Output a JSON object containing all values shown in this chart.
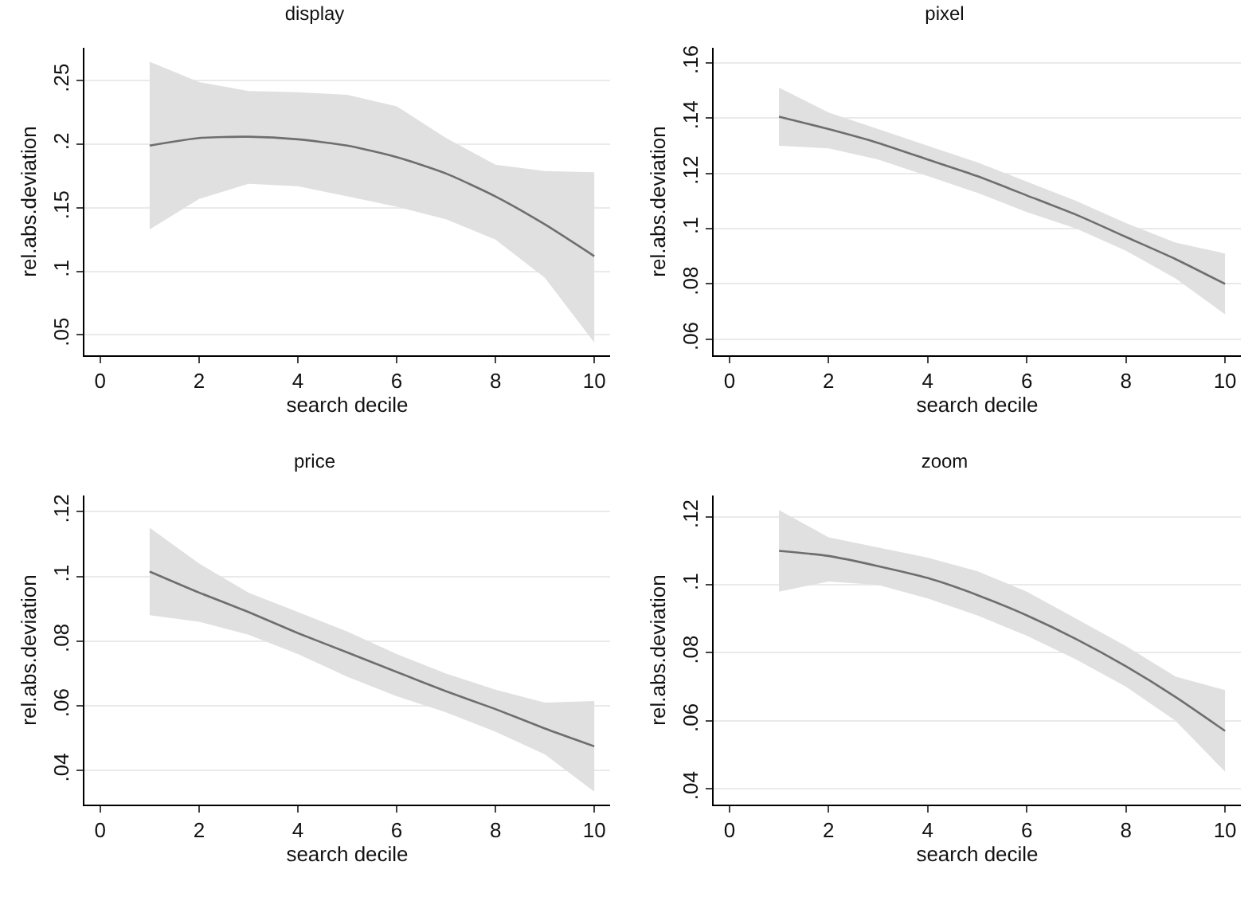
{
  "chart_data": [
    {
      "type": "line",
      "title": "display",
      "xlabel": "search decile",
      "ylabel": "rel.abs.deviation",
      "x": [
        1,
        2,
        3,
        4,
        5,
        6,
        7,
        8,
        9,
        10
      ],
      "xlim": [
        -0.32,
        10.32
      ],
      "xticks": [
        0,
        2,
        4,
        6,
        8,
        10
      ],
      "ylim": [
        0.034,
        0.276
      ],
      "yticks": [
        {
          "value": 0.05,
          "label": ".05"
        },
        {
          "value": 0.1,
          "label": ".1"
        },
        {
          "value": 0.15,
          "label": ".15"
        },
        {
          "value": 0.2,
          "label": ".2"
        },
        {
          "value": 0.25,
          "label": ".25"
        }
      ],
      "grid": "y",
      "series": [
        {
          "color": "#6e6e6e",
          "values": [
            0.199,
            0.205,
            0.206,
            0.204,
            0.199,
            0.19,
            0.177,
            0.159,
            0.137,
            0.112
          ],
          "lower": [
            0.133,
            0.157,
            0.169,
            0.167,
            0.159,
            0.151,
            0.141,
            0.125,
            0.095,
            0.044
          ],
          "upper": [
            0.265,
            0.249,
            0.242,
            0.241,
            0.239,
            0.23,
            0.205,
            0.184,
            0.179,
            0.178
          ]
        }
      ]
    },
    {
      "type": "line",
      "title": "pixel",
      "xlabel": "search decile",
      "ylabel": "rel.abs.deviation",
      "x": [
        1,
        2,
        3,
        4,
        5,
        6,
        7,
        8,
        9,
        10
      ],
      "xlim": [
        -0.32,
        10.32
      ],
      "xticks": [
        0,
        2,
        4,
        6,
        8,
        10
      ],
      "ylim": [
        0.0542,
        0.1654
      ],
      "yticks": [
        {
          "value": 0.06,
          "label": ".06"
        },
        {
          "value": 0.08,
          "label": ".08"
        },
        {
          "value": 0.1,
          "label": ".1"
        },
        {
          "value": 0.12,
          "label": ".12"
        },
        {
          "value": 0.14,
          "label": ".14"
        },
        {
          "value": 0.16,
          "label": ".16"
        }
      ],
      "grid": "y",
      "series": [
        {
          "color": "#6e6e6e",
          "values": [
            0.1405,
            0.136,
            0.131,
            0.125,
            0.119,
            0.112,
            0.105,
            0.097,
            0.089,
            0.08
          ],
          "lower": [
            0.13,
            0.129,
            0.125,
            0.119,
            0.113,
            0.106,
            0.1,
            0.092,
            0.082,
            0.069
          ],
          "upper": [
            0.151,
            0.142,
            0.136,
            0.13,
            0.124,
            0.117,
            0.11,
            0.102,
            0.095,
            0.091
          ]
        }
      ]
    },
    {
      "type": "line",
      "title": "price",
      "xlabel": "search decile",
      "ylabel": "rel.abs.deviation",
      "x": [
        1,
        2,
        3,
        4,
        5,
        6,
        7,
        8,
        9,
        10
      ],
      "xlim": [
        -0.32,
        10.32
      ],
      "xticks": [
        0,
        2,
        4,
        6,
        8,
        10
      ],
      "ylim": [
        0.0295,
        0.125
      ],
      "yticks": [
        {
          "value": 0.04,
          "label": ".04"
        },
        {
          "value": 0.06,
          "label": ".06"
        },
        {
          "value": 0.08,
          "label": ".08"
        },
        {
          "value": 0.1,
          "label": ".1"
        },
        {
          "value": 0.12,
          "label": ".12"
        }
      ],
      "grid": "y",
      "series": [
        {
          "color": "#6e6e6e",
          "values": [
            0.1015,
            0.095,
            0.089,
            0.0825,
            0.0765,
            0.0705,
            0.0645,
            0.059,
            0.053,
            0.0475
          ],
          "lower": [
            0.088,
            0.086,
            0.082,
            0.076,
            0.069,
            0.063,
            0.058,
            0.052,
            0.045,
            0.0335
          ],
          "upper": [
            0.115,
            0.104,
            0.095,
            0.089,
            0.083,
            0.076,
            0.07,
            0.065,
            0.061,
            0.0615
          ]
        }
      ]
    },
    {
      "type": "line",
      "title": "zoom",
      "xlabel": "search decile",
      "ylabel": "rel.abs.deviation",
      "x": [
        1,
        2,
        3,
        4,
        5,
        6,
        7,
        8,
        9,
        10
      ],
      "xlim": [
        -0.32,
        10.32
      ],
      "xticks": [
        0,
        2,
        4,
        6,
        8,
        10
      ],
      "ylim": [
        0.0353,
        0.1263
      ],
      "yticks": [
        {
          "value": 0.04,
          "label": ".04"
        },
        {
          "value": 0.06,
          "label": ".06"
        },
        {
          "value": 0.08,
          "label": ".08"
        },
        {
          "value": 0.1,
          "label": ".1"
        },
        {
          "value": 0.12,
          "label": ".12"
        }
      ],
      "grid": "y",
      "series": [
        {
          "color": "#6e6e6e",
          "values": [
            0.11,
            0.1085,
            0.1055,
            0.102,
            0.097,
            0.091,
            0.084,
            0.076,
            0.067,
            0.057
          ],
          "lower": [
            0.098,
            0.101,
            0.1,
            0.096,
            0.091,
            0.085,
            0.078,
            0.07,
            0.06,
            0.045
          ],
          "upper": [
            0.122,
            0.114,
            0.111,
            0.108,
            0.104,
            0.098,
            0.09,
            0.082,
            0.073,
            0.069
          ]
        }
      ]
    }
  ]
}
